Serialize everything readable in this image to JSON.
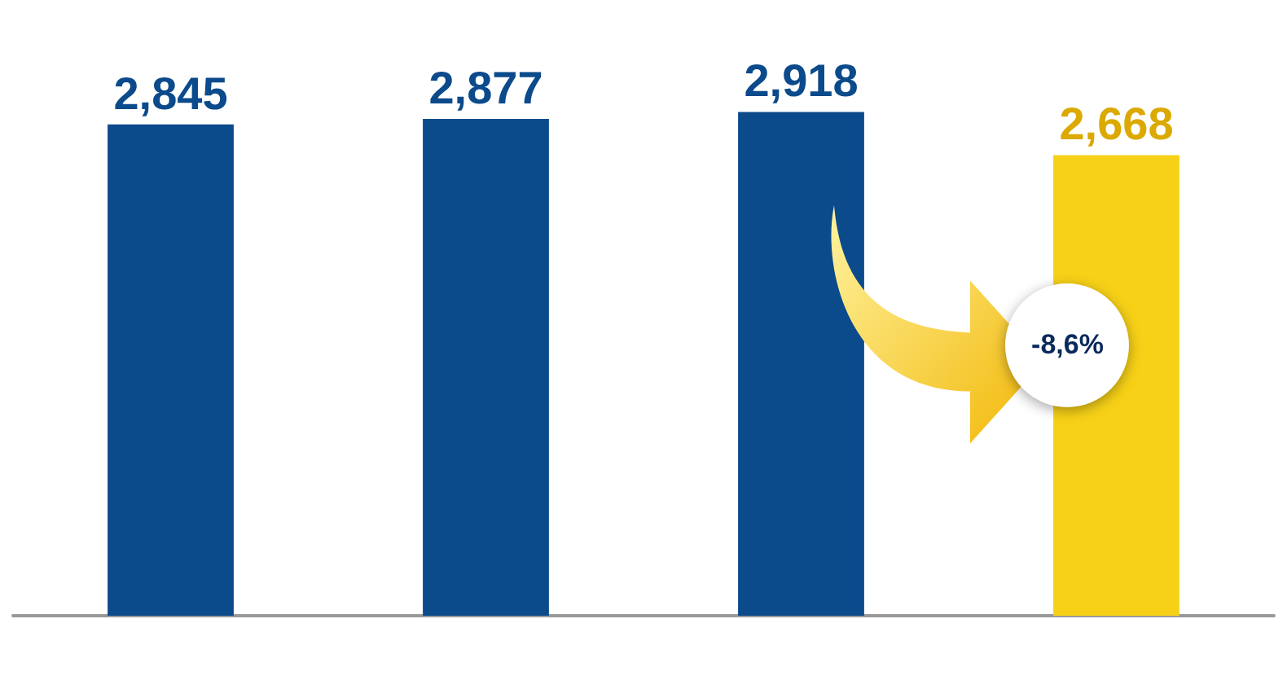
{
  "chart_data": {
    "type": "bar",
    "categories": [
      null,
      null,
      null,
      null
    ],
    "values": [
      2845,
      2877,
      2918,
      2668
    ],
    "value_labels": [
      "2,845",
      "2,877",
      "2,918",
      "2,668"
    ],
    "colors": [
      "#0b4a8b",
      "#0b4a8b",
      "#0b4a8b",
      "#f7d117"
    ],
    "annotations": [
      "-8,6%"
    ],
    "grid": false
  }
}
